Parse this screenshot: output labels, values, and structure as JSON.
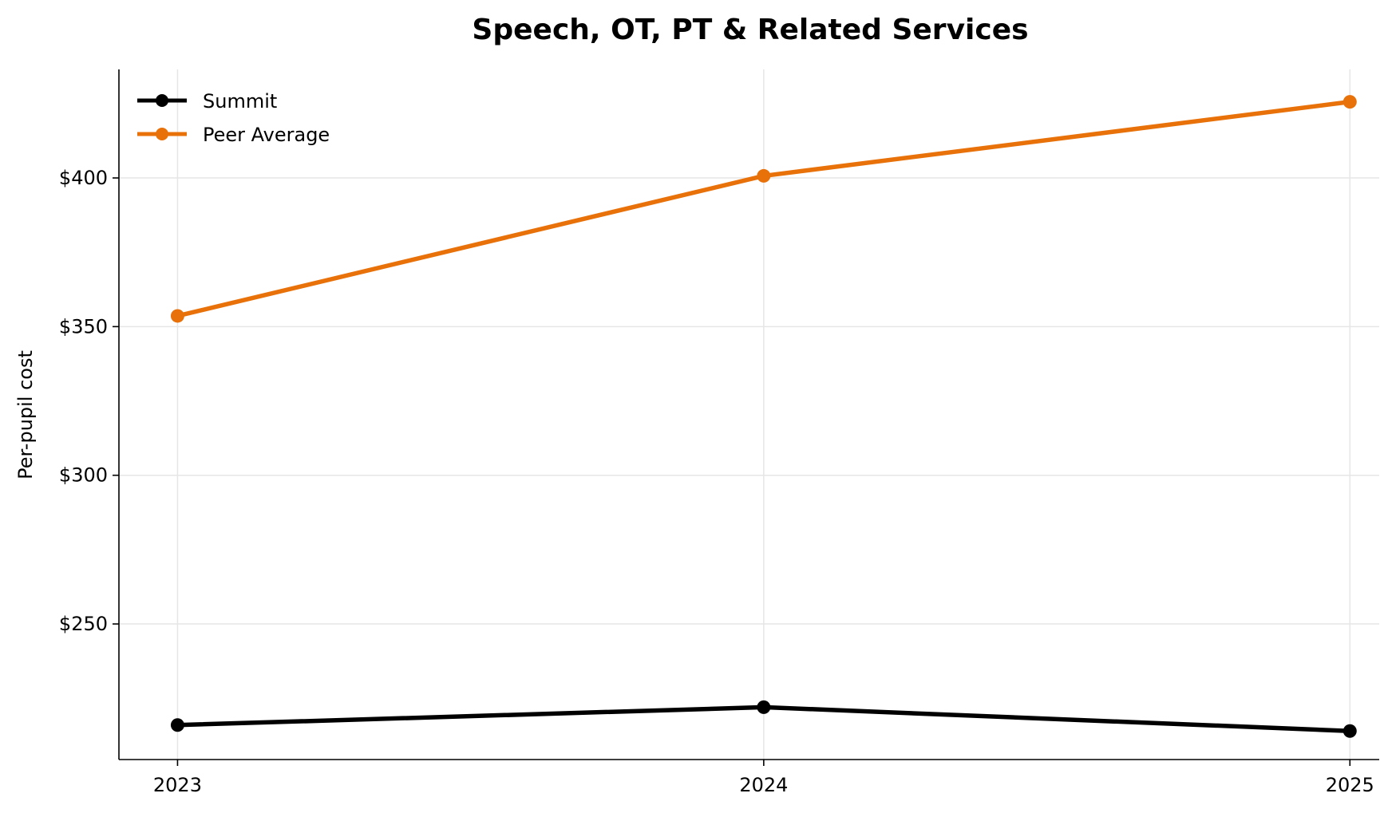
{
  "chart_data": {
    "type": "line",
    "title": "Speech, OT, PT & Related Services",
    "xlabel": "",
    "ylabel": "Per-pupil cost",
    "categories": [
      "2023",
      "2024",
      "2025"
    ],
    "x": [
      2023,
      2024,
      2025
    ],
    "xlim": [
      2022.9,
      2025.05
    ],
    "ylim": [
      204.4,
      436.5
    ],
    "yticks": [
      250,
      300,
      350,
      400
    ],
    "ytick_labels": [
      "$250",
      "$300",
      "$350",
      "$400"
    ],
    "grid": true,
    "legend_position": "top-left",
    "series": [
      {
        "name": "Summit",
        "color": "#000000",
        "values": [
          216,
          222,
          214
        ]
      },
      {
        "name": "Peer Average",
        "color": "#E69F00",
        "values": [
          353.6,
          400.7,
          425.6
        ]
      }
    ]
  },
  "colors": {
    "summit": "#000000",
    "peer": "#E8710A",
    "grid": "#e6e6e6"
  }
}
